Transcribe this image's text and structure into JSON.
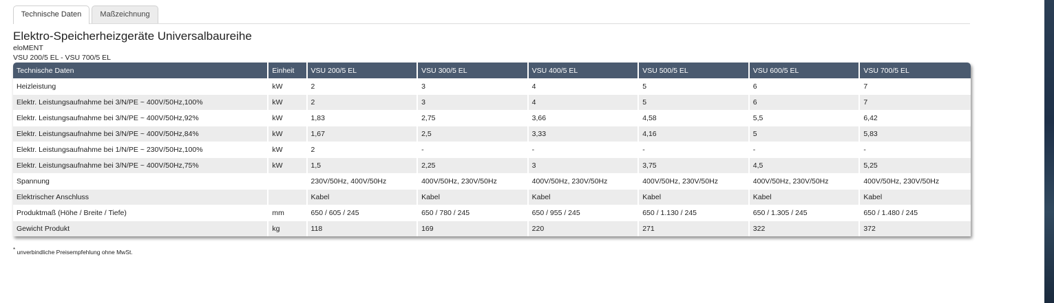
{
  "tabs": [
    {
      "label": "Technische Daten",
      "active": true
    },
    {
      "label": "Maßzeichnung",
      "active": false
    }
  ],
  "product": {
    "title": "Elektro-Speicherheizgeräte Universalbaureihe",
    "brand": "eloMENT",
    "models_range": "VSU 200/5 EL - VSU 700/5 EL"
  },
  "table": {
    "headers": [
      "Technische Daten",
      "Einheit",
      "VSU 200/5 EL",
      "VSU 300/5 EL",
      "VSU 400/5 EL",
      "VSU 500/5 EL",
      "VSU 600/5 EL",
      "VSU 700/5 EL"
    ],
    "rows": [
      [
        "Heizleistung",
        "kW",
        "2",
        "3",
        "4",
        "5",
        "6",
        "7"
      ],
      [
        "Elektr. Leistungsaufnahme bei 3/N/PE ~ 400V/50Hz,100%",
        "kW",
        "2",
        "3",
        "4",
        "5",
        "6",
        "7"
      ],
      [
        "Elektr. Leistungsaufnahme bei 3/N/PE ~ 400V/50Hz,92%",
        "kW",
        "1,83",
        "2,75",
        "3,66",
        "4,58",
        "5,5",
        "6,42"
      ],
      [
        "Elektr. Leistungsaufnahme bei 3/N/PE ~ 400V/50Hz,84%",
        "kW",
        "1,67",
        "2,5",
        "3,33",
        "4,16",
        "5",
        "5,83"
      ],
      [
        "Elektr. Leistungsaufnahme bei 1/N/PE ~ 230V/50Hz,100%",
        "kW",
        "2",
        "-",
        "-",
        "-",
        "-",
        "-"
      ],
      [
        "Elektr. Leistungsaufnahme bei 3/N/PE ~ 400V/50Hz,75%",
        "kW",
        "1,5",
        "2,25",
        "3",
        "3,75",
        "4,5",
        "5,25"
      ],
      [
        "Spannung",
        "",
        "230V/50Hz, 400V/50Hz",
        "400V/50Hz, 230V/50Hz",
        "400V/50Hz, 230V/50Hz",
        "400V/50Hz, 230V/50Hz",
        "400V/50Hz, 230V/50Hz",
        "400V/50Hz, 230V/50Hz"
      ],
      [
        "Elektrischer Anschluss",
        "",
        "Kabel",
        "Kabel",
        "Kabel",
        "Kabel",
        "Kabel",
        "Kabel"
      ],
      [
        "Produktmaß (Höhe / Breite / Tiefe)",
        "mm",
        "650 / 605 / 245",
        "650 / 780 / 245",
        "650 / 955 / 245",
        "650 / 1.130 / 245",
        "650 / 1.305 / 245",
        "650 / 1.480 / 245"
      ],
      [
        "Gewicht Produkt",
        "kg",
        "118",
        "169",
        "220",
        "271",
        "322",
        "372"
      ]
    ]
  },
  "footnote": {
    "marker": "*",
    "text": "unverbindliche Preisempfehlung ohne MwSt."
  },
  "colors": {
    "header_bg": "#4a5a6f",
    "row_alt_bg": "#ececec"
  }
}
